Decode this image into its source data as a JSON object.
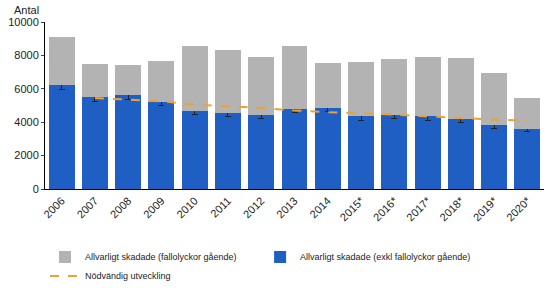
{
  "chart_data": {
    "type": "bar",
    "stacked": true,
    "y_label": "Antal",
    "categories": [
      "2006",
      "2007",
      "2008",
      "2009",
      "2010",
      "2011",
      "2012",
      "2013",
      "2014",
      "2015*",
      "2016*",
      "2017*",
      "2018*",
      "2019*",
      "2020*"
    ],
    "series": [
      {
        "name": "Allvarligt skadade (exkl fallolyckor gående)",
        "color": "#1f5fc4",
        "values": [
          6250,
          5500,
          5600,
          5200,
          4700,
          4550,
          4450,
          4800,
          4850,
          4350,
          4450,
          4350,
          4200,
          3850,
          3600
        ],
        "errors": [
          300,
          250,
          250,
          220,
          220,
          220,
          230,
          200,
          230,
          220,
          200,
          220,
          200,
          200,
          180
        ]
      },
      {
        "name": "Allvarligt skadade (fallolyckor gående)",
        "color": "#b3b3b3",
        "values": [
          2850,
          2000,
          1850,
          2450,
          3850,
          3750,
          3450,
          3750,
          2700,
          3250,
          3350,
          3550,
          3650,
          3100,
          1850
        ]
      },
      {
        "name": "Nödvändig utveckling",
        "type": "line",
        "line_style": "dashed",
        "color": "#f0a030",
        "values": [
          null,
          5450,
          5350,
          5250,
          5050,
          4950,
          4850,
          4700,
          4600,
          4550,
          4450,
          4350,
          4250,
          4150,
          4100
        ]
      }
    ],
    "ylim": [
      0,
      10000
    ],
    "yticks": [
      0,
      2000,
      4000,
      6000,
      8000,
      10000
    ],
    "grid": false,
    "legend": "bottom"
  }
}
